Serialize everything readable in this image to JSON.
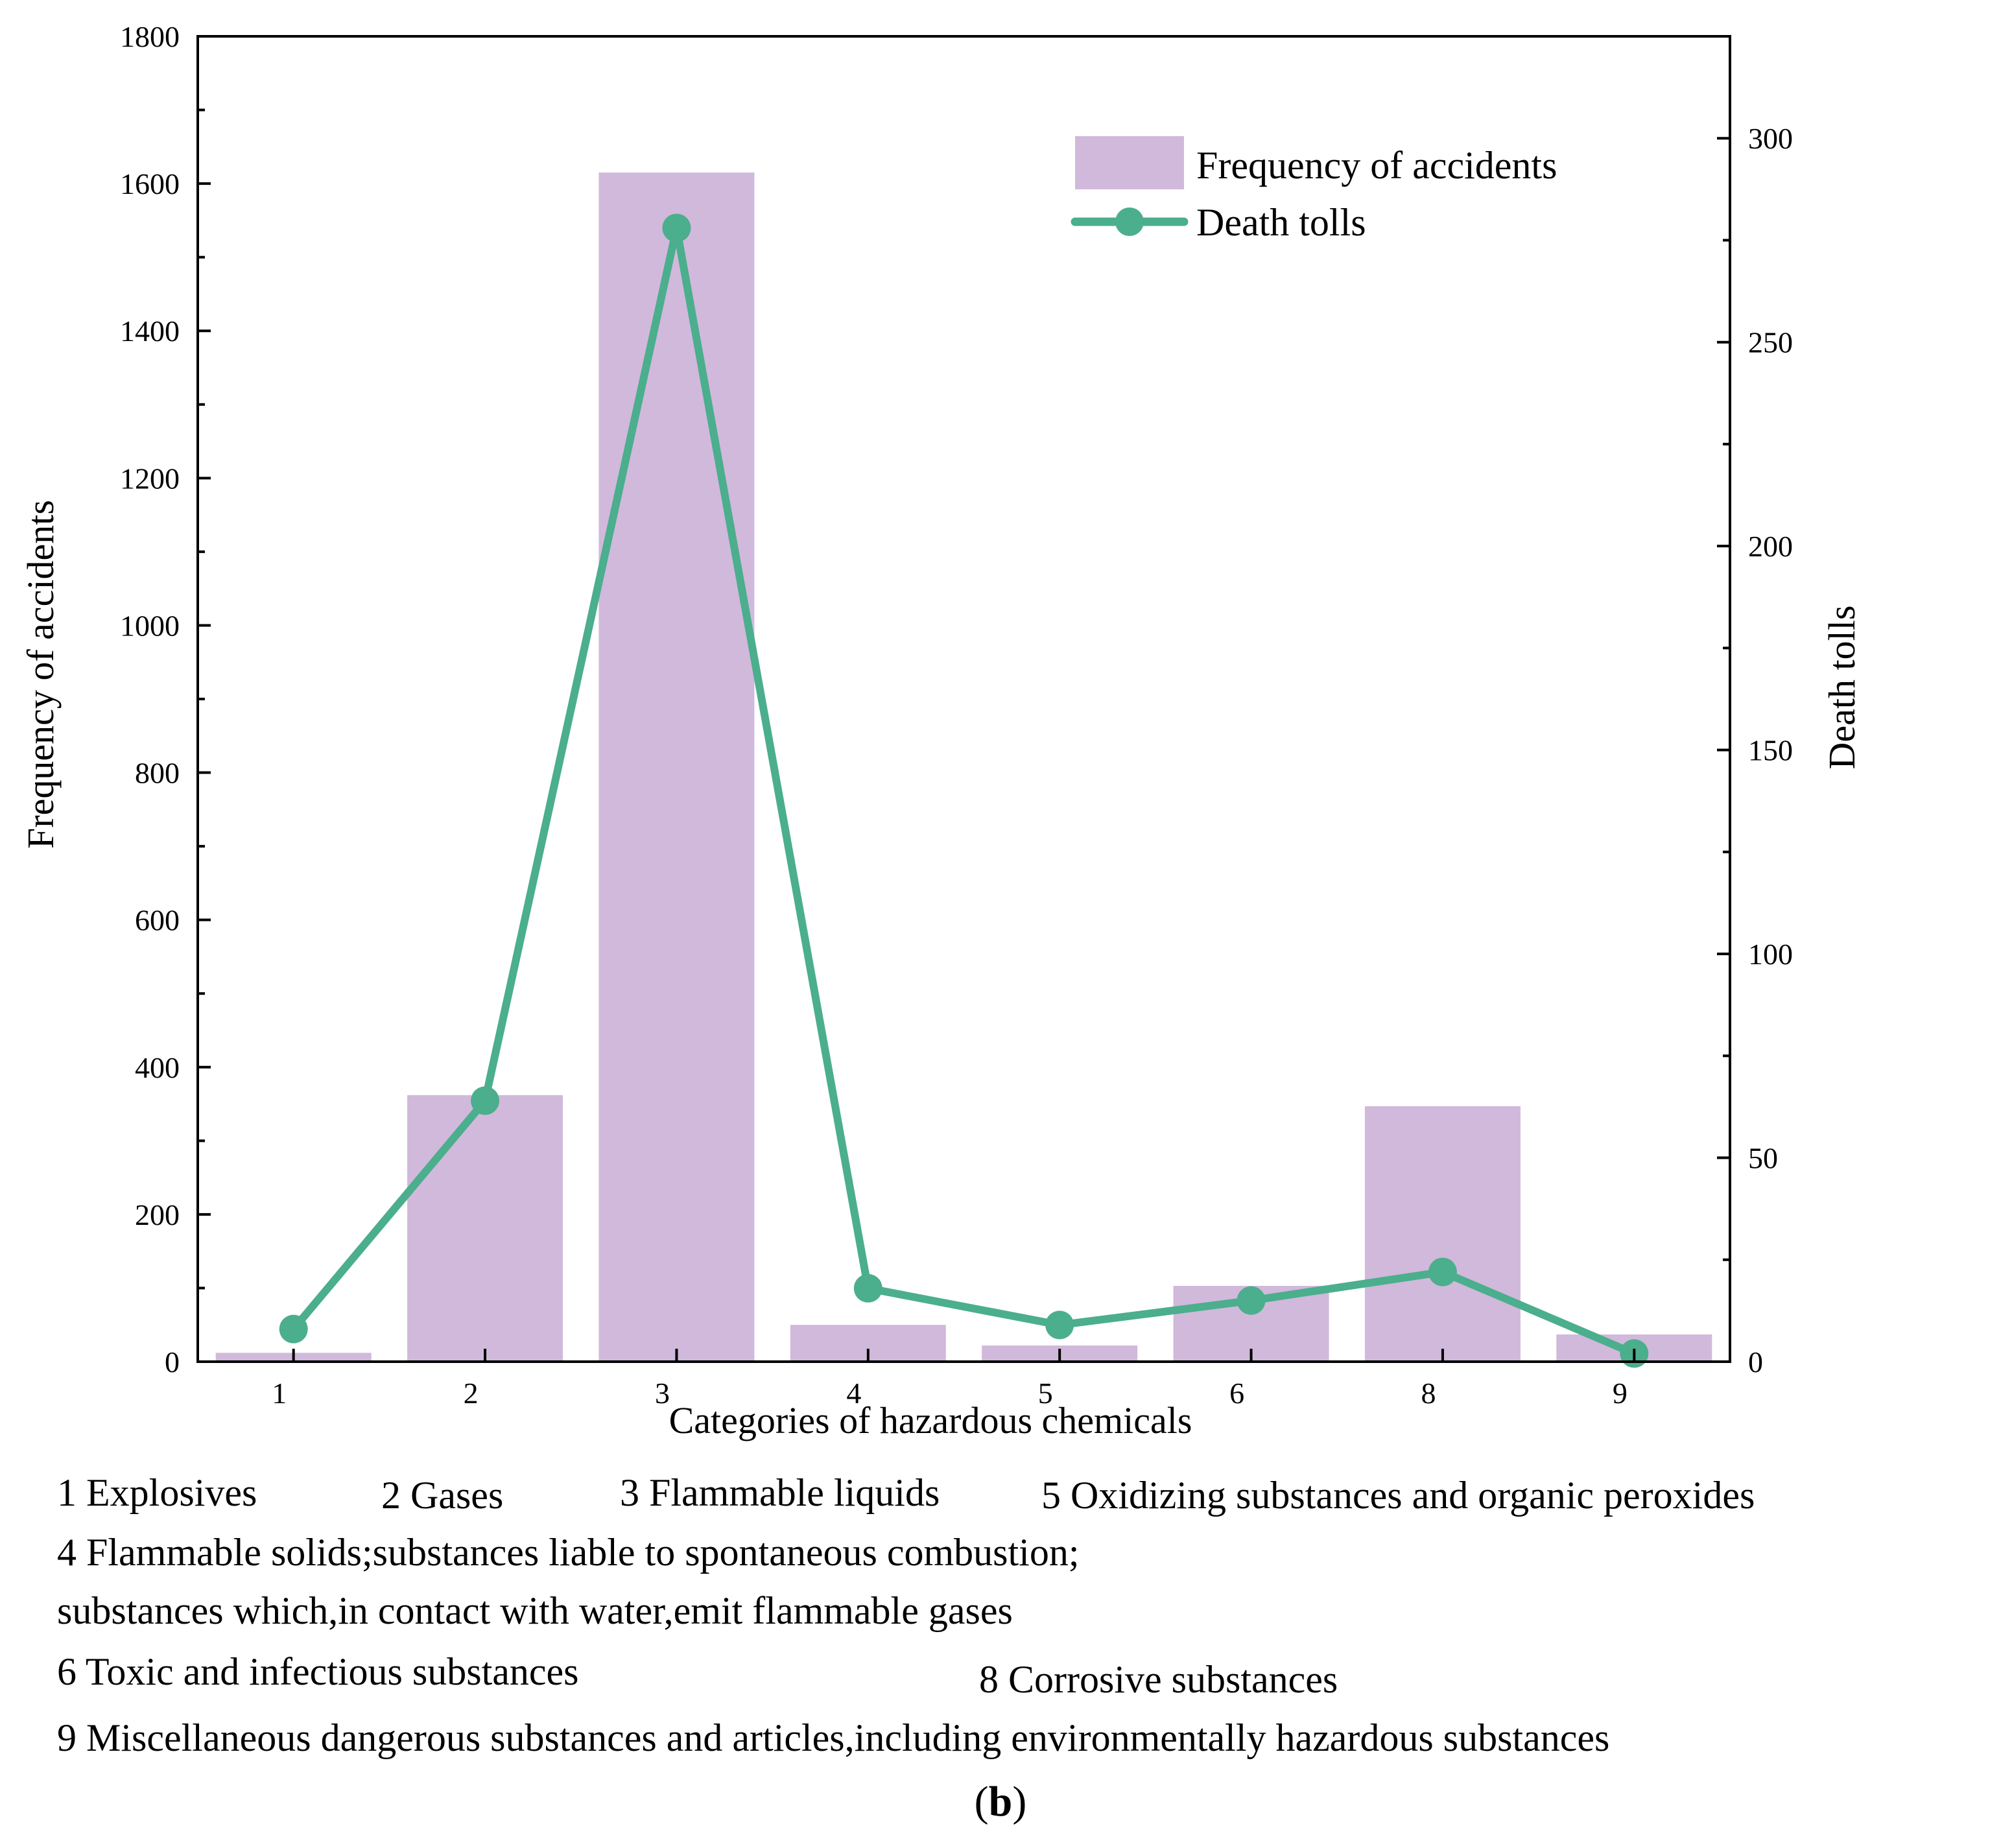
{
  "chart_data": {
    "type": "bar+line",
    "categories": [
      "1",
      "2",
      "3",
      "4",
      "5",
      "6",
      "8",
      "9"
    ],
    "series": [
      {
        "name": "Frequency of accidents",
        "type": "bar",
        "axis": "left",
        "color": "#D1B9DB",
        "values": [
          12,
          362,
          1615,
          50,
          22,
          103,
          347,
          37
        ]
      },
      {
        "name": "Death tolls",
        "type": "line",
        "axis": "right",
        "color": "#4BAE8D",
        "values": [
          8,
          64,
          278,
          18,
          9,
          15,
          22,
          2
        ]
      }
    ],
    "xlabel": "Categories of hazardous chemicals",
    "ylabel": "Frequency of accidents",
    "y2label": "Death tolls",
    "ylim": [
      0,
      1800
    ],
    "y2lim": [
      0,
      325
    ],
    "yticks": [
      "0",
      "200",
      "400",
      "600",
      "800",
      "1000",
      "1200",
      "1400",
      "1600",
      "1800"
    ],
    "yticks_values": [
      0,
      200,
      400,
      600,
      800,
      1000,
      1200,
      1400,
      1600,
      1800
    ],
    "y2ticks": [
      "0",
      "50",
      "100",
      "150",
      "200",
      "250",
      "300"
    ],
    "y2ticks_values": [
      0,
      50,
      100,
      150,
      200,
      250,
      300
    ],
    "legend": {
      "position": "top-right",
      "bar_label": "Frequency of accidents",
      "line_label": "Death tolls"
    },
    "grid": false
  },
  "caption": {
    "c1": "1  Explosives",
    "c2": "2  Gases",
    "c3": "3  Flammable liquids",
    "c5": "5  Oxidizing substances and organic peroxides",
    "c4a": "4  Flammable solids;substances liable to spontaneous combustion;",
    "c4b": "substances which,in contact with water,emit flammable gases",
    "c6": "6 Toxic and infectious substances",
    "c8": "8  Corrosive substances",
    "c9": "9  Miscellaneous dangerous substances and articles,including environmentally hazardous substances",
    "label_open": "(",
    "label_letter": "b",
    "label_close": ")"
  }
}
